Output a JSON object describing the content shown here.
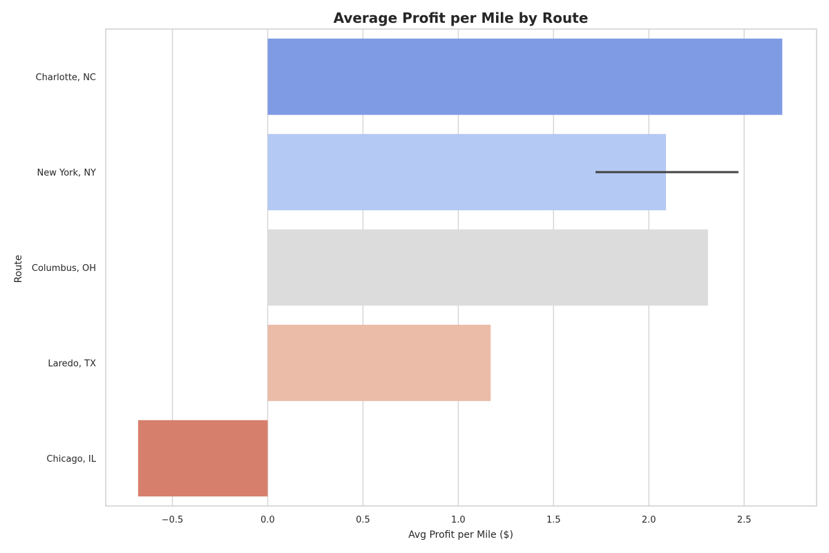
{
  "chart_data": {
    "type": "bar",
    "orientation": "horizontal",
    "title": "Average Profit per Mile by Route",
    "xlabel": "Avg Profit per Mile ($)",
    "ylabel": "Route",
    "xlim": [
      -0.85,
      2.88
    ],
    "xticks": [
      -0.5,
      0.0,
      0.5,
      1.0,
      1.5,
      2.0,
      2.5
    ],
    "xtick_labels": [
      "−0.5",
      "0.0",
      "0.5",
      "1.0",
      "1.5",
      "2.0",
      "2.5"
    ],
    "grid": true,
    "categories": [
      "Charlotte, NC",
      "New York, NY",
      "Columbus, OH",
      "Laredo, TX",
      "Chicago, IL"
    ],
    "values": [
      2.7,
      2.09,
      2.31,
      1.17,
      -0.68
    ],
    "colors": [
      "#7f9be3",
      "#b4c9f3",
      "#dcdcdc",
      "#ebbca8",
      "#d77f6d"
    ],
    "error_bars": [
      null,
      [
        1.72,
        2.47
      ],
      null,
      null,
      null
    ]
  }
}
